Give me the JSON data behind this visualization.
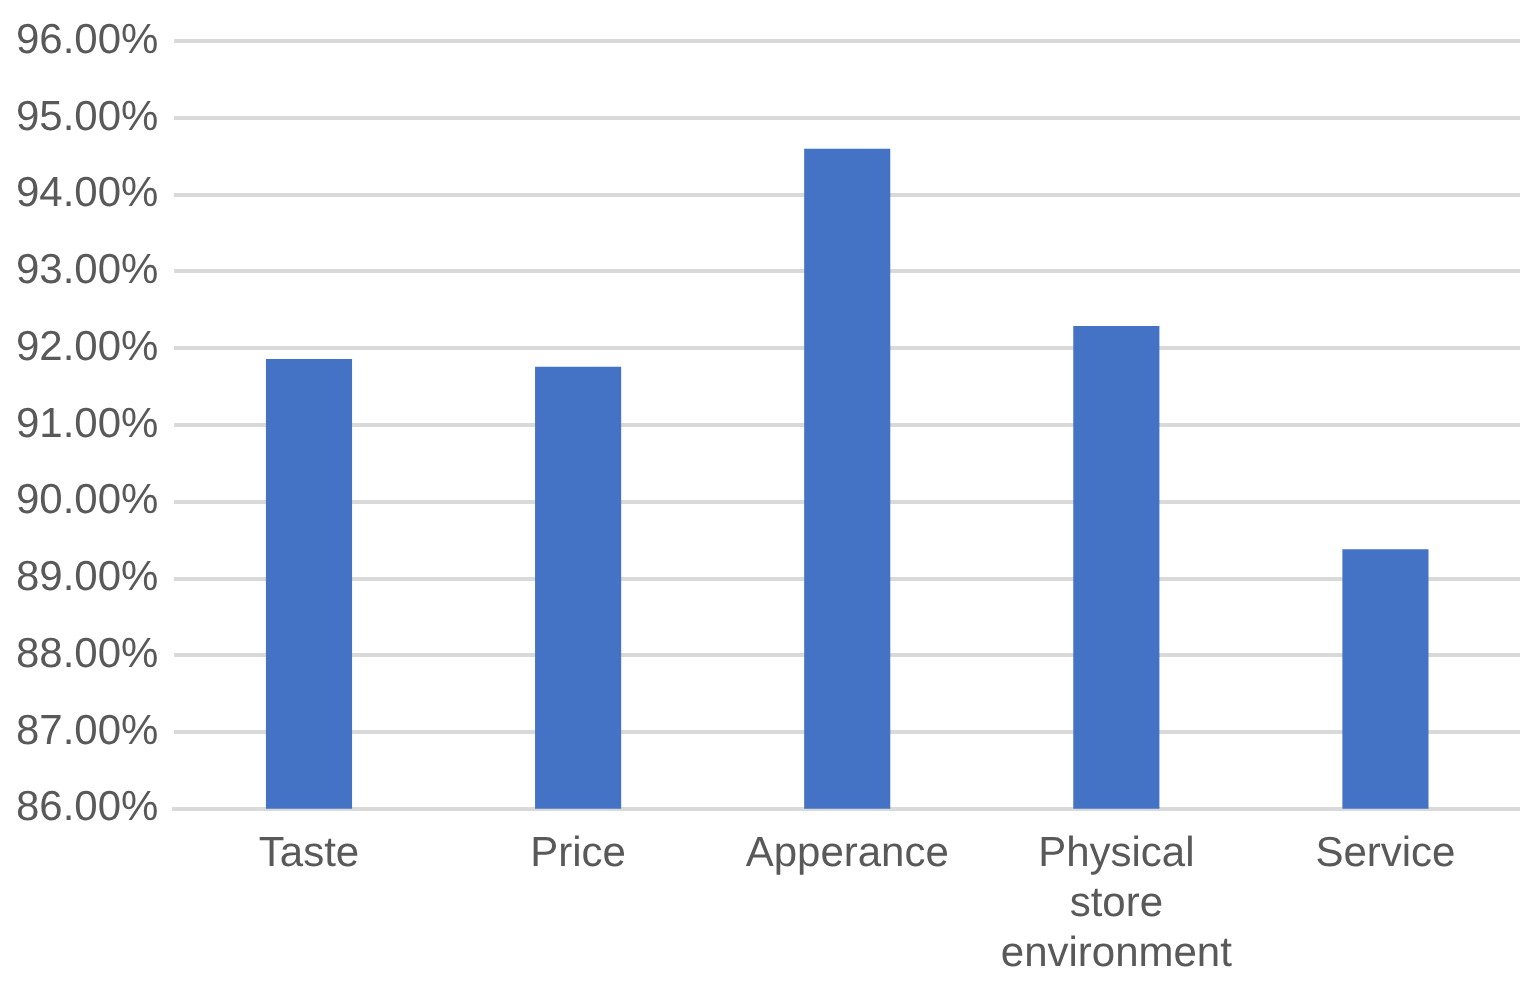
{
  "chart_data": {
    "type": "bar",
    "categories": [
      "Taste",
      "Price",
      "Apperance",
      "Physical store environment",
      "Service"
    ],
    "values": [
      91.86,
      91.76,
      94.6,
      92.29,
      89.38
    ],
    "color": "#4472c4",
    "ylim": [
      86,
      96
    ],
    "yticks": [
      {
        "value": 86,
        "label": "86.00%"
      },
      {
        "value": 87,
        "label": "87.00%"
      },
      {
        "value": 88,
        "label": "88.00%"
      },
      {
        "value": 89,
        "label": "89.00%"
      },
      {
        "value": 90,
        "label": "90.00%"
      },
      {
        "value": 91,
        "label": "91.00%"
      },
      {
        "value": 92,
        "label": "92.00%"
      },
      {
        "value": 93,
        "label": "93.00%"
      },
      {
        "value": 94,
        "label": "94.00%"
      },
      {
        "value": 95,
        "label": "95.00%"
      },
      {
        "value": 96,
        "label": "96.00%"
      }
    ],
    "grid": "y",
    "legend": false
  }
}
